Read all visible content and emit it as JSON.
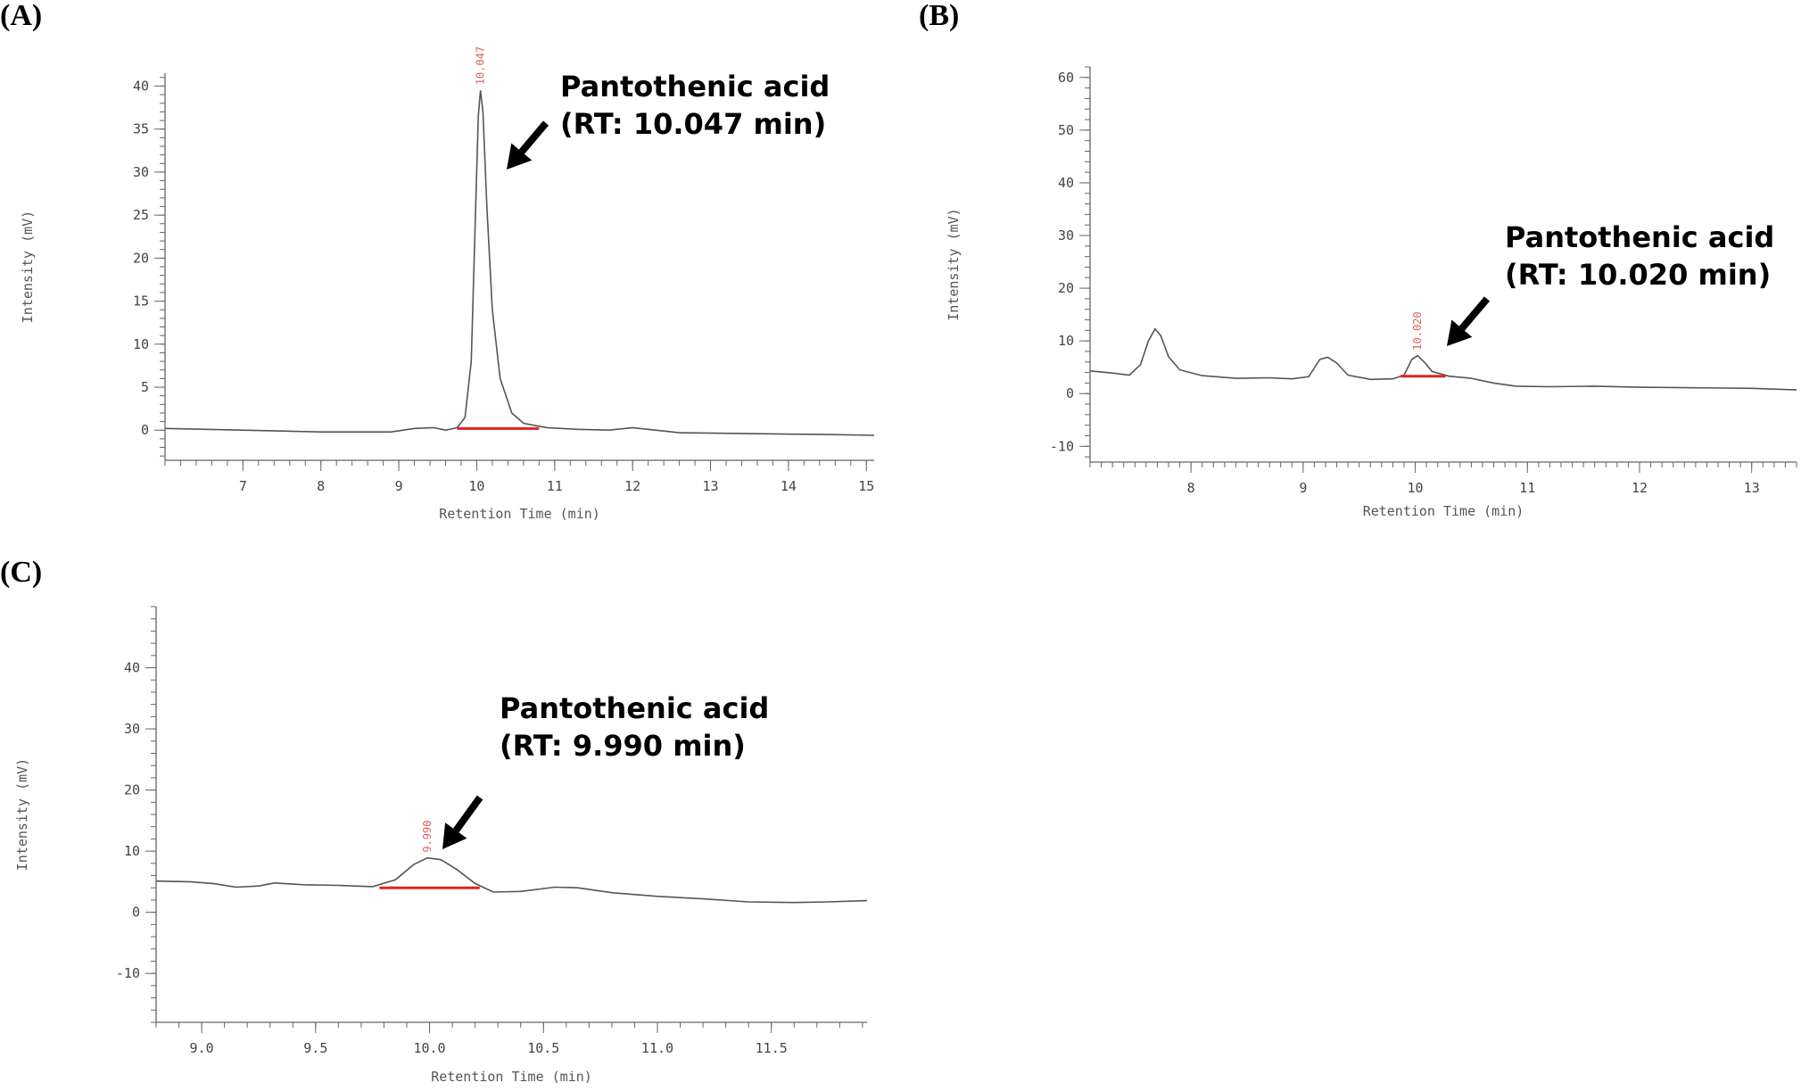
{
  "colors": {
    "trace": "#555555",
    "baseline": "#e0231c",
    "peak_label": "#e06060",
    "arrow": "#000000"
  },
  "chart_data": [
    {
      "id": "A",
      "type": "line",
      "panel_label": "(A)",
      "xlabel": "Retention Time (min)",
      "ylabel": "Intensity (mV)",
      "xlim": [
        6.0,
        15.1
      ],
      "ylim": [
        -3.5,
        41.5
      ],
      "x_ticks": [
        7,
        8,
        9,
        10,
        11,
        12,
        13,
        14,
        15
      ],
      "y_ticks": [
        0,
        5,
        10,
        15,
        20,
        25,
        30,
        35,
        40
      ],
      "x_minor_step": 0.2,
      "y_minor_step": 1,
      "series": [
        {
          "points": [
            [
              6.0,
              0.2
            ],
            [
              7.0,
              0.0
            ],
            [
              8.0,
              -0.2
            ],
            [
              8.9,
              -0.2
            ],
            [
              9.2,
              0.2
            ],
            [
              9.45,
              0.3
            ],
            [
              9.6,
              0.0
            ],
            [
              9.75,
              0.3
            ],
            [
              9.85,
              1.5
            ],
            [
              9.93,
              8.0
            ],
            [
              9.98,
              24.0
            ],
            [
              10.02,
              36.5
            ],
            [
              10.047,
              39.5
            ],
            [
              10.08,
              37.0
            ],
            [
              10.13,
              26.0
            ],
            [
              10.2,
              14.0
            ],
            [
              10.3,
              6.0
            ],
            [
              10.45,
              2.0
            ],
            [
              10.6,
              0.8
            ],
            [
              10.9,
              0.3
            ],
            [
              11.3,
              0.1
            ],
            [
              11.7,
              0.0
            ],
            [
              12.0,
              0.3
            ],
            [
              12.2,
              0.1
            ],
            [
              12.6,
              -0.3
            ],
            [
              13.5,
              -0.4
            ],
            [
              14.5,
              -0.5
            ],
            [
              15.1,
              -0.6
            ]
          ]
        }
      ],
      "peaks": [
        {
          "rt": 10.047,
          "height": 39.5,
          "label": "10.047",
          "baseline_start": 9.75,
          "baseline_end": 10.8,
          "baseline_y": 0.2
        }
      ],
      "annotation": {
        "line1": "Pantothenic acid",
        "line2": "(RT: 10.047 min)"
      }
    },
    {
      "id": "B",
      "type": "line",
      "panel_label": "(B)",
      "xlabel": "Retention Time (min)",
      "ylabel": "Intensity (mV)",
      "xlim": [
        7.1,
        13.4
      ],
      "ylim": [
        -13,
        62
      ],
      "x_ticks": [
        8,
        9,
        10,
        11,
        12,
        13
      ],
      "y_ticks": [
        -10,
        0,
        10,
        20,
        30,
        40,
        50,
        60
      ],
      "x_minor_step": 0.1,
      "y_minor_step": 2,
      "series": [
        {
          "points": [
            [
              7.1,
              4.3
            ],
            [
              7.3,
              3.9
            ],
            [
              7.45,
              3.5
            ],
            [
              7.55,
              5.5
            ],
            [
              7.62,
              10.0
            ],
            [
              7.68,
              12.3
            ],
            [
              7.73,
              11.0
            ],
            [
              7.8,
              7.0
            ],
            [
              7.9,
              4.5
            ],
            [
              8.1,
              3.4
            ],
            [
              8.4,
              2.9
            ],
            [
              8.7,
              3.0
            ],
            [
              8.9,
              2.8
            ],
            [
              9.05,
              3.2
            ],
            [
              9.15,
              6.5
            ],
            [
              9.22,
              6.9
            ],
            [
              9.3,
              5.8
            ],
            [
              9.4,
              3.5
            ],
            [
              9.6,
              2.7
            ],
            [
              9.8,
              2.8
            ],
            [
              9.9,
              3.5
            ],
            [
              9.97,
              6.5
            ],
            [
              10.02,
              7.2
            ],
            [
              10.08,
              6.0
            ],
            [
              10.15,
              4.2
            ],
            [
              10.3,
              3.3
            ],
            [
              10.5,
              2.9
            ],
            [
              10.7,
              2.0
            ],
            [
              10.9,
              1.4
            ],
            [
              11.2,
              1.3
            ],
            [
              11.6,
              1.4
            ],
            [
              12.0,
              1.2
            ],
            [
              12.5,
              1.1
            ],
            [
              13.0,
              1.0
            ],
            [
              13.4,
              0.7
            ]
          ]
        }
      ],
      "peaks": [
        {
          "rt": 10.02,
          "height": 7.2,
          "label": "10.020",
          "baseline_start": 9.87,
          "baseline_end": 10.27,
          "baseline_y": 3.3
        }
      ],
      "annotation": {
        "line1": "Pantothenic acid",
        "line2": "(RT: 10.020 min)"
      }
    },
    {
      "id": "C",
      "type": "line",
      "panel_label": "(C)",
      "xlabel": "Retention Time (min)",
      "ylabel": "Intensity (mV)",
      "xlim": [
        8.8,
        11.92
      ],
      "ylim": [
        -18,
        50
      ],
      "x_ticks": [
        9.0,
        9.5,
        10.0,
        10.5,
        11.0,
        11.5
      ],
      "y_ticks": [
        -10,
        0,
        10,
        20,
        30,
        40
      ],
      "x_minor_step": 0.1,
      "y_minor_step": 2,
      "series": [
        {
          "points": [
            [
              8.8,
              5.1
            ],
            [
              8.95,
              5.0
            ],
            [
              9.05,
              4.7
            ],
            [
              9.15,
              4.1
            ],
            [
              9.25,
              4.3
            ],
            [
              9.32,
              4.8
            ],
            [
              9.45,
              4.5
            ],
            [
              9.6,
              4.4
            ],
            [
              9.75,
              4.2
            ],
            [
              9.85,
              5.3
            ],
            [
              9.93,
              7.8
            ],
            [
              9.99,
              8.9
            ],
            [
              10.05,
              8.6
            ],
            [
              10.12,
              7.0
            ],
            [
              10.2,
              4.7
            ],
            [
              10.28,
              3.3
            ],
            [
              10.4,
              3.4
            ],
            [
              10.55,
              4.1
            ],
            [
              10.65,
              4.0
            ],
            [
              10.8,
              3.2
            ],
            [
              11.0,
              2.6
            ],
            [
              11.2,
              2.2
            ],
            [
              11.4,
              1.7
            ],
            [
              11.6,
              1.6
            ],
            [
              11.75,
              1.7
            ],
            [
              11.92,
              1.9
            ]
          ]
        }
      ],
      "peaks": [
        {
          "rt": 9.99,
          "height": 8.9,
          "label": "9.990",
          "baseline_start": 9.78,
          "baseline_end": 10.22,
          "baseline_y": 4.0
        }
      ],
      "annotation": {
        "line1": "Pantothenic acid",
        "line2": "(RT: 9.990 min)"
      }
    }
  ]
}
